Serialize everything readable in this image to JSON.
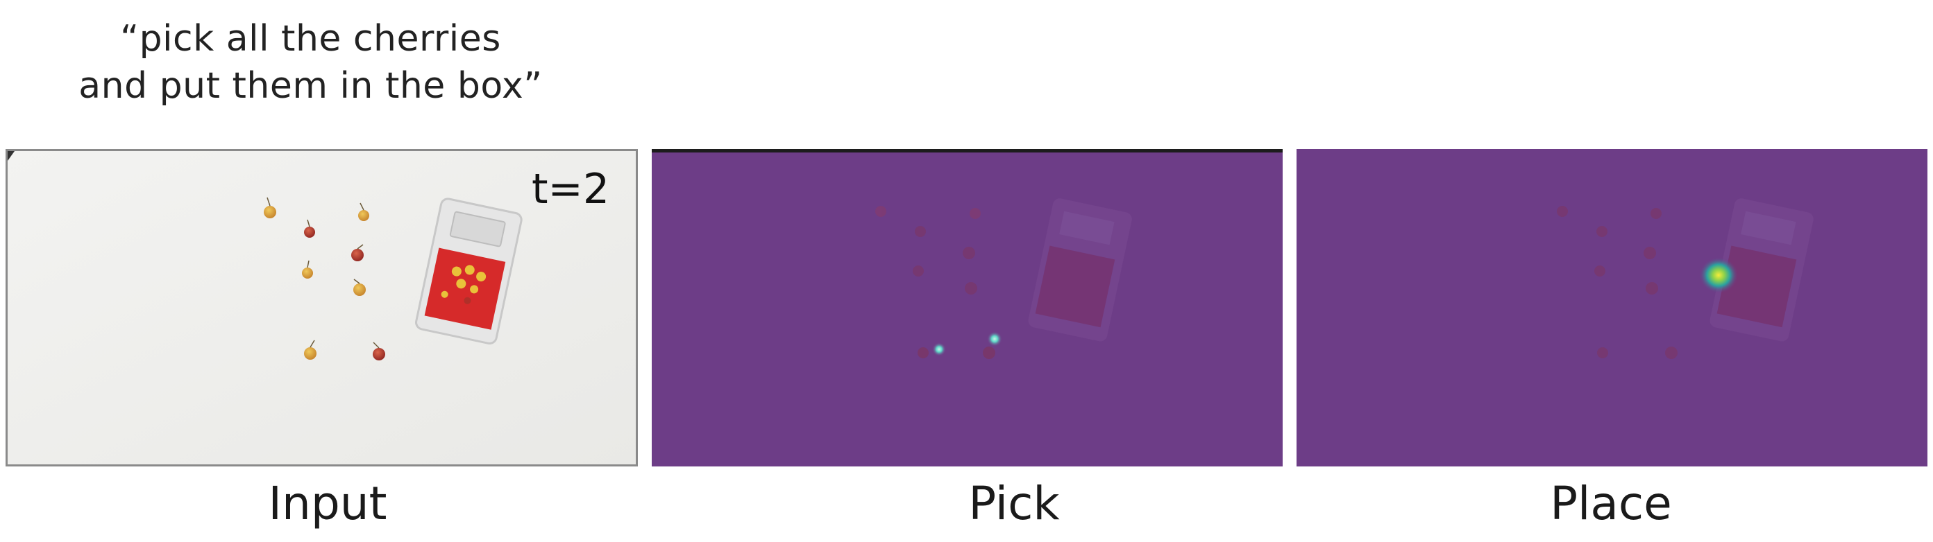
{
  "instruction": {
    "line1": "“pick all the cherries",
    "line2": "and put them in the box”"
  },
  "panels": [
    {
      "id": "input",
      "label": "Input",
      "timestep": "t=2"
    },
    {
      "id": "pick",
      "label": "Pick"
    },
    {
      "id": "place",
      "label": "Place"
    }
  ],
  "colors": {
    "table_surface": "#f1f1ef",
    "heatmap_background": "#6b3d86",
    "cherry_red": "#b5322c",
    "cherry_yellow": "#d8a53a",
    "box_red": "#d62a2a",
    "heat_hot_yellow": "#f2e43a",
    "heat_cyan": "#5fd8c8"
  }
}
